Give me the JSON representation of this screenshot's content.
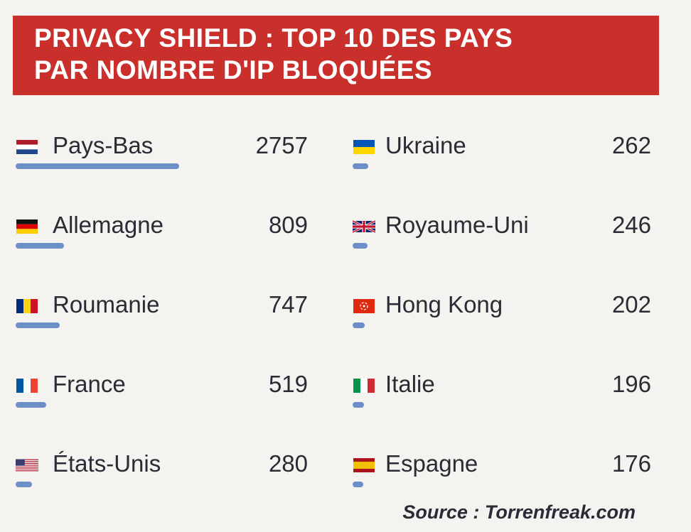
{
  "title": {
    "line1": "PRIVACY SHIELD : TOP 10 DES PAYS",
    "line2": "PAR NOMBRE D'IP BLOQUÉES"
  },
  "source": "Source : Torrenfreak.com",
  "colors": {
    "header": "#c9302c",
    "bar": "#6d8fc8",
    "text": "#2a2b35"
  },
  "chart_data": {
    "type": "bar",
    "title": "PRIVACY SHIELD : TOP 10 DES PAYS PAR NOMBRE D'IP BLOQUÉES",
    "xlabel": "",
    "ylabel": "",
    "categories": [
      "Pays-Bas",
      "Allemagne",
      "Roumanie",
      "France",
      "États-Unis",
      "Ukraine",
      "Royaume-Uni",
      "Hong Kong",
      "Italie",
      "Espagne"
    ],
    "values": [
      2757,
      809,
      747,
      519,
      280,
      262,
      246,
      202,
      196,
      176
    ],
    "value_labels": [
      "2757",
      "809",
      "747",
      "519",
      "280",
      "262",
      "246",
      "202",
      "196",
      "176"
    ],
    "flags": [
      "netherlands-flag-icon",
      "germany-flag-icon",
      "romania-flag-icon",
      "france-flag-icon",
      "usa-flag-icon",
      "ukraine-flag-icon",
      "uk-flag-icon",
      "hong-kong-flag-icon",
      "italy-flag-icon",
      "spain-flag-icon"
    ],
    "max_value": 2757
  }
}
